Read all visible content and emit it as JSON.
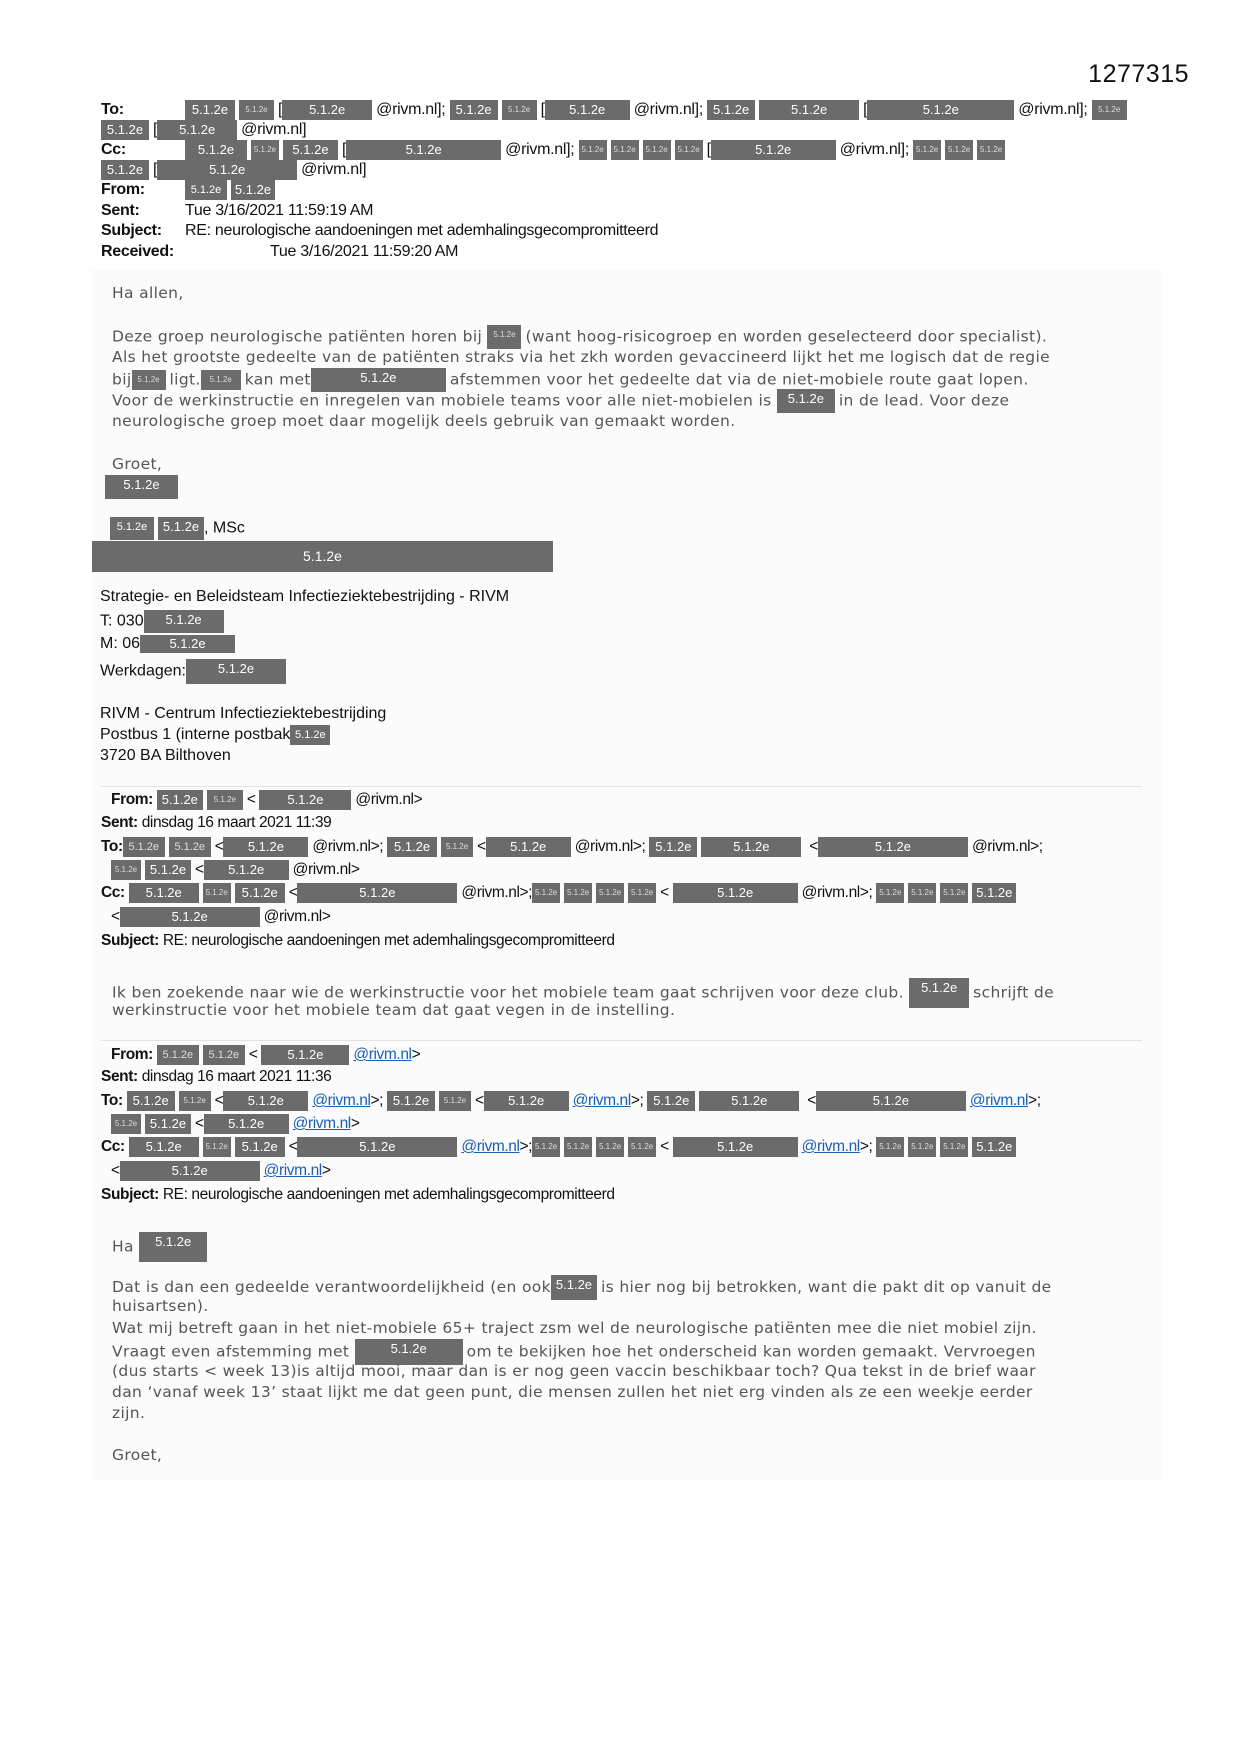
{
  "doc_number": "1277315",
  "redaction": "5.1.2e",
  "tokens": {
    "lb": "[",
    "lt": "<",
    "rivm_close": "@rivm.nl]",
    "rivm_close_semi": "@rivm.nl];",
    "rivm_gt": "@rivm.nl>",
    "rivm_gt_semi": "@rivm.nl>;",
    "rivm_link": "@rivm.nl",
    "gt": ">",
    "gt_semi": ">;"
  },
  "header": {
    "to_label": "To:",
    "cc_label": "Cc:",
    "from_label": "From:",
    "sent_label": "Sent:",
    "sent": "Tue 3/16/2021 11:59:19 AM",
    "subject_label": "Subject:",
    "subject": "RE: neurologische aandoeningen met ademhalingsgecompromitteerd",
    "received_label": "Received:",
    "received": "Tue 3/16/2021 11:59:20 AM"
  },
  "message1": {
    "greeting": "Ha allen,",
    "p1a": "Deze groep neurologische patiënten horen bij",
    "p1b": "(want hoog-risicogroep en worden geselecteerd door specialist).",
    "p2": "Als het grootste gedeelte van de patiënten straks via het zkh worden gevaccineerd lijkt het me logisch dat de regie",
    "p3a": "bij",
    "p3b": "ligt.",
    "p3c": "kan met",
    "p3d": "afstemmen voor het gedeelte dat via de niet-mobiele route gaat lopen.",
    "p4a": "Voor de werkinstructie en inregelen van mobiele teams voor alle niet-mobielen is",
    "p4b": "in de lead. Voor deze",
    "p5": "neurologische groep moet daar mogelijk deels gebruik van gemaakt worden.",
    "closing": "Groet,"
  },
  "signature": {
    "title_suffix": ", MSc",
    "team": "Strategie- en Beleidsteam Infectieziektebestrijding - RIVM",
    "phone_prefix": "T: 030",
    "mobile_prefix": "M: 06",
    "workdays_label": "Werkdagen:",
    "org": "RIVM - Centrum Infectieziektebestrijding",
    "postbus": "Postbus 1 (interne postbak",
    "city": "3720 BA Bilthoven"
  },
  "reply1": {
    "from_label": "From:",
    "sent_label": "Sent:",
    "sent": "dinsdag 16 maart 2021 11:39",
    "to_label": "To:",
    "cc_label": "Cc:",
    "subject_label": "Subject:",
    "subject": "RE: neurologische aandoeningen met ademhalingsgecompromitteerd",
    "body1a": "Ik ben zoekende naar wie de werkinstructie voor het mobiele team gaat schrijven voor deze club.",
    "body1b": "schrijft de",
    "body2": "werkinstructie voor het mobiele team dat gaat vegen in de instelling."
  },
  "reply2": {
    "from_label": "From:",
    "sent_label": "Sent:",
    "sent": "dinsdag 16 maart 2021 11:36",
    "to_label": "To:",
    "cc_label": "Cc:",
    "subject_label": "Subject:",
    "subject": "RE: neurologische aandoeningen met ademhalingsgecompromitteerd",
    "greeting": "Ha",
    "l1a": "Dat is dan een gedeelde verantwoordelijkheid (en ook",
    "l1b": "is hier nog bij betrokken, want die pakt dit op vanuit de",
    "l2": "huisartsen).",
    "l3": "Wat mij betreft gaan in het niet-mobiele 65+ traject zsm wel de neurologische patiënten mee die niet mobiel zijn.",
    "l4a": "Vraagt even afstemming met",
    "l4b": "om te bekijken hoe het onderscheid kan worden gemaakt. Vervroegen",
    "l5": "(dus starts < week 13)is altijd mooi, maar dan is er nog geen vaccin beschikbaar toch? Qua tekst in de brief waar",
    "l6": "dan ‘vanaf week 13’ staat lijkt me dat geen punt, die mensen zullen het niet erg vinden als ze een weekje eerder",
    "l7": "zijn.",
    "closing": "Groet,"
  }
}
